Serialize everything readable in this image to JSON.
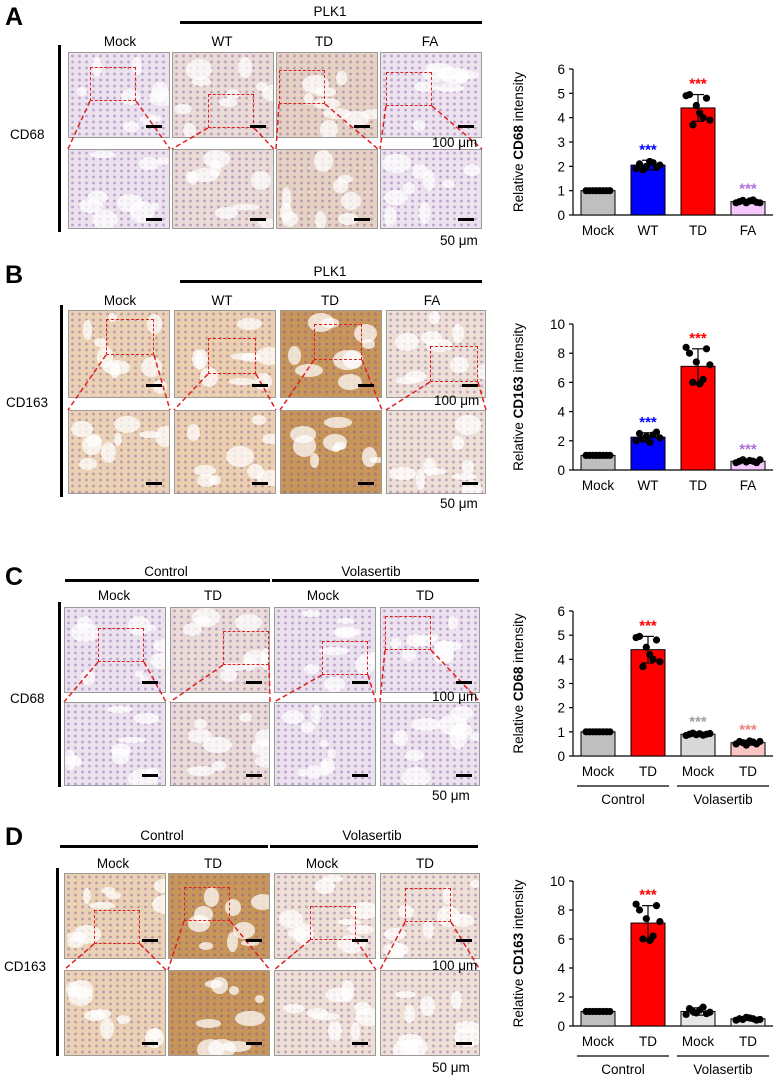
{
  "panels": [
    {
      "letter": "A",
      "marker": "CD68",
      "group_header": "PLK1",
      "col_labels": [
        "Mock",
        "WT",
        "TD",
        "FA"
      ],
      "scale_top": "100 μm",
      "scale_bottom": "50 μm",
      "tints": [
        "pale",
        "light",
        "brown",
        "pale"
      ]
    },
    {
      "letter": "B",
      "marker": "CD163",
      "group_header": "PLK1",
      "col_labels": [
        "Mock",
        "WT",
        "TD",
        "FA"
      ],
      "scale_top": "100 μm",
      "scale_bottom": "50 μm",
      "tints": [
        "brown",
        "brown",
        "darkbrown",
        "light"
      ]
    },
    {
      "letter": "C",
      "marker": "CD68",
      "group_headers": [
        "Control",
        "Volasertib"
      ],
      "col_labels": [
        "Mock",
        "TD",
        "Mock",
        "TD"
      ],
      "scale_top": "100 μm",
      "scale_bottom": "50 μm",
      "tints": [
        "pale",
        "light",
        "pale",
        "pale"
      ]
    },
    {
      "letter": "D",
      "marker": "CD163",
      "group_headers": [
        "Control",
        "Volasertib"
      ],
      "col_labels": [
        "Mock",
        "TD",
        "Mock",
        "TD"
      ],
      "scale_top": "100 μm",
      "scale_bottom": "50 μm",
      "tints": [
        "brown",
        "darkbrown",
        "light",
        "light"
      ]
    }
  ],
  "chart_data": [
    {
      "type": "bar",
      "ylabel_prefix": "Relative ",
      "ylabel_bold": "CD68",
      "ylabel_suffix": " intensity",
      "categories": [
        "Mock",
        "WT",
        "TD",
        "FA"
      ],
      "values": [
        1.0,
        2.05,
        4.4,
        0.55
      ],
      "errors": [
        0.0,
        0.2,
        0.55,
        0.08
      ],
      "colors": [
        "#bfbfbf",
        "#0000ff",
        "#ff0000",
        "#f6c8ff"
      ],
      "stars": [
        "",
        "***",
        "***",
        "***"
      ],
      "star_colors": [
        "",
        "#0000ff",
        "#ff0000",
        "#b070e0"
      ],
      "ylim": [
        0,
        6
      ],
      "yticks": [
        "0",
        "1",
        "2",
        "3",
        "4",
        "5",
        "6"
      ],
      "points": [
        [
          1,
          1,
          1,
          1,
          1,
          1,
          1,
          1
        ],
        [
          1.9,
          2.1,
          1.85,
          2.0,
          2.2,
          2.15,
          1.95,
          2.05
        ],
        [
          4.9,
          4.95,
          3.7,
          4.5,
          4.2,
          4.0,
          4.8,
          3.9
        ],
        [
          0.5,
          0.55,
          0.6,
          0.5,
          0.58,
          0.62,
          0.52,
          0.5
        ]
      ]
    },
    {
      "type": "bar",
      "ylabel_prefix": "Relative ",
      "ylabel_bold": "CD163",
      "ylabel_suffix": " intensity",
      "categories": [
        "Mock",
        "WT",
        "TD",
        "FA"
      ],
      "values": [
        1.0,
        2.25,
        7.1,
        0.6
      ],
      "errors": [
        0.0,
        0.3,
        1.2,
        0.1
      ],
      "colors": [
        "#bfbfbf",
        "#0000ff",
        "#ff0000",
        "#f6c8ff"
      ],
      "stars": [
        "",
        "***",
        "***",
        "***"
      ],
      "star_colors": [
        "",
        "#0000ff",
        "#ff0000",
        "#b070e0"
      ],
      "ylim": [
        0,
        10
      ],
      "yticks": [
        "0",
        "2",
        "4",
        "6",
        "8",
        "10"
      ],
      "points": [
        [
          1,
          1,
          1,
          1,
          1,
          1,
          1,
          1
        ],
        [
          2.0,
          2.5,
          2.1,
          2.3,
          1.9,
          2.4,
          2.6,
          2.2
        ],
        [
          8.4,
          8.0,
          6.0,
          7.4,
          5.9,
          6.2,
          8.3,
          7.2
        ],
        [
          0.5,
          0.6,
          0.7,
          0.55,
          0.65,
          0.6,
          0.5,
          0.7
        ]
      ]
    },
    {
      "type": "bar",
      "ylabel_prefix": "Relative ",
      "ylabel_bold": "CD68",
      "ylabel_suffix": " intensity",
      "categories": [
        "Mock",
        "TD",
        "Mock",
        "TD"
      ],
      "groups": [
        "Control",
        "Volasertib"
      ],
      "values": [
        1.0,
        4.4,
        0.9,
        0.55
      ],
      "errors": [
        0.0,
        0.55,
        0.08,
        0.1
      ],
      "colors": [
        "#bfbfbf",
        "#ff0000",
        "#d9d9d9",
        "#f8c4c4"
      ],
      "stars": [
        "",
        "***",
        "***",
        "***"
      ],
      "star_colors": [
        "",
        "#ff0000",
        "#a0a0a0",
        "#f08080"
      ],
      "ylim": [
        0,
        6
      ],
      "yticks": [
        "0",
        "1",
        "2",
        "3",
        "4",
        "5",
        "6"
      ],
      "points": [
        [
          1,
          1,
          1,
          1,
          1,
          1,
          1,
          1
        ],
        [
          4.9,
          4.95,
          3.7,
          4.5,
          4.2,
          4.0,
          4.8,
          3.9
        ],
        [
          0.85,
          0.9,
          0.95,
          0.88,
          0.92,
          0.86,
          0.9,
          0.93
        ],
        [
          0.5,
          0.6,
          0.55,
          0.45,
          0.62,
          0.58,
          0.5,
          0.6
        ]
      ]
    },
    {
      "type": "bar",
      "ylabel_prefix": "Relative ",
      "ylabel_bold": "CD163",
      "ylabel_suffix": " intensity",
      "categories": [
        "Mock",
        "TD",
        "Mock",
        "TD"
      ],
      "groups": [
        "Control",
        "Volasertib"
      ],
      "values": [
        1.0,
        7.1,
        1.0,
        0.5
      ],
      "errors": [
        0.0,
        1.2,
        0.25,
        0.1
      ],
      "colors": [
        "#bfbfbf",
        "#ff0000",
        "#e6e6e6",
        "#ececec"
      ],
      "stars": [
        "",
        "***",
        "",
        ""
      ],
      "star_colors": [
        "",
        "#ff0000",
        "",
        ""
      ],
      "ylim": [
        0,
        10
      ],
      "yticks": [
        "0",
        "2",
        "4",
        "6",
        "8",
        "10"
      ],
      "points": [
        [
          1,
          1,
          1,
          1,
          1,
          1,
          1,
          1
        ],
        [
          8.4,
          8.0,
          6.0,
          7.4,
          5.9,
          6.2,
          8.3,
          7.2
        ],
        [
          0.8,
          1.2,
          1.0,
          0.9,
          1.1,
          1.3,
          0.85,
          0.95
        ],
        [
          0.4,
          0.5,
          0.45,
          0.6,
          0.55,
          0.5,
          0.4,
          0.45
        ]
      ]
    }
  ]
}
